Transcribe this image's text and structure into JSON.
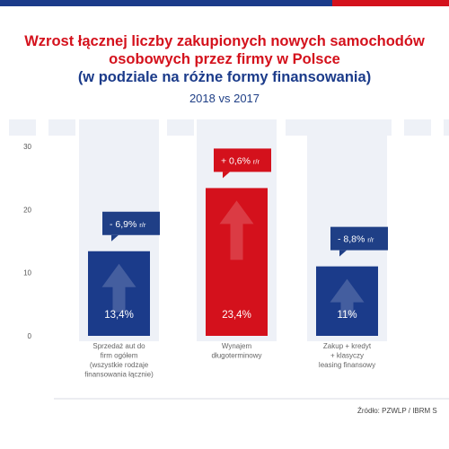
{
  "title": {
    "line1": "Wzrost łącznej liczby zakupionych nowych samochodów",
    "line2": "osobowych przez firmy w Polsce",
    "line3": "(w podziale na różne formy finansowania)"
  },
  "subtitle": "2018 vs 2017",
  "source": "Źródło: PZWLP / IBRM S",
  "colors": {
    "navy": "#1b3b8a",
    "red": "#d4111c",
    "column_bg": "#eef1f7",
    "callout_navy": "#1f3f86"
  },
  "chart_data": {
    "type": "bar",
    "ylim": [
      0,
      30
    ],
    "yticks": [
      "0",
      "10",
      "20",
      "30"
    ],
    "categories": [
      "Sprzedaż aut do firm ogółem (wszystkie rodzaje finansowania łącznie)",
      "Wynajem długoterminowy",
      "Zakup + kredyt + klasyczny leasing finansowy"
    ],
    "category_lines": [
      [
        "Sprzedaż aut do",
        "firm ogółem",
        "(wszystkie rodzaje",
        "finansowania łącznie)"
      ],
      [
        "Wynajem",
        "długoterminowy"
      ],
      [
        "Zakup + kredyt",
        "+ klasyczy",
        "leasing finansowy"
      ]
    ],
    "values": [
      13.4,
      23.4,
      11
    ],
    "value_labels": [
      "13,4%",
      "23,4%",
      "11%"
    ],
    "changes": [
      "- 6,9%",
      "+ 0,6%",
      "- 8,8%"
    ],
    "change_unit": "r/r",
    "bar_colors": [
      "#1b3b8a",
      "#d4111c",
      "#1b3b8a"
    ],
    "grid": false,
    "legend": "none"
  }
}
